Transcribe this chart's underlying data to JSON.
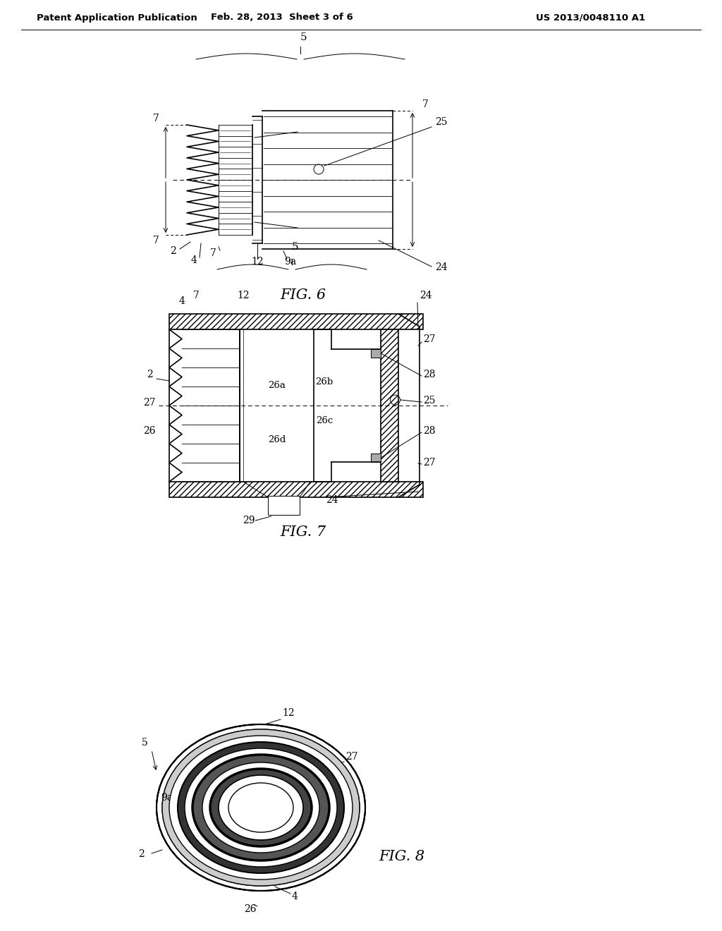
{
  "header_left": "Patent Application Publication",
  "header_center": "Feb. 28, 2013  Sheet 3 of 6",
  "header_right": "US 2013/0048110 A1",
  "fig6_label": "FIG. 6",
  "fig7_label": "FIG. 7",
  "fig8_label": "FIG. 8",
  "bg_color": "#ffffff",
  "line_color": "#000000",
  "gray_fill": "#d0d0d0",
  "hatch_fill": "#aaaaaa"
}
